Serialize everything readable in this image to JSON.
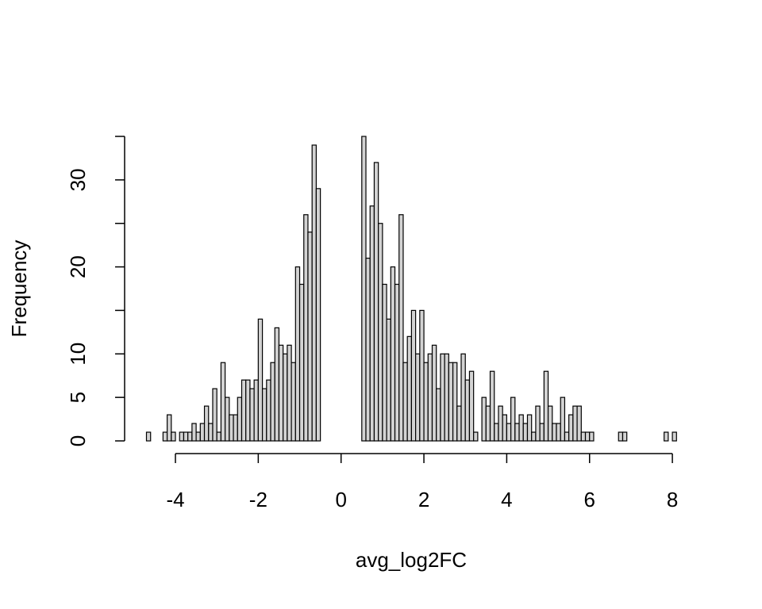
{
  "chart_data": {
    "type": "histogram",
    "xlabel": "avg_log2FC",
    "ylabel": "Frequency",
    "bins": [
      -4.7,
      -4.6,
      -4.5,
      -4.4,
      -4.3,
      -4.2,
      -4.1,
      -4,
      -3.9,
      -3.8,
      -3.7,
      -3.6,
      -3.5,
      -3.4,
      -3.3,
      -3.2,
      -3.1,
      -3,
      -2.9,
      -2.8,
      -2.7,
      -2.6,
      -2.5,
      -2.4,
      -2.3,
      -2.2,
      -2.1,
      -2,
      -1.9,
      -1.8,
      -1.7,
      -1.6,
      -1.5,
      -1.4,
      -1.3,
      -1.2,
      -1.1,
      -1,
      -0.9,
      -0.8,
      -0.7,
      -0.6,
      -0.5,
      -0.4,
      -0.3,
      -0.2,
      -0.1,
      0,
      0.1,
      0.2,
      0.3,
      0.4,
      0.5,
      0.6,
      0.7,
      0.8,
      0.9,
      1,
      1.1,
      1.2,
      1.3,
      1.4,
      1.5,
      1.6,
      1.7,
      1.8,
      1.9,
      2,
      2.1,
      2.2,
      2.3,
      2.4,
      2.5,
      2.6,
      2.7,
      2.8,
      2.9,
      3,
      3.1,
      3.2,
      3.3,
      3.4,
      3.5,
      3.6,
      3.7,
      3.8,
      3.9,
      4,
      4.1,
      4.2,
      4.3,
      4.4,
      4.5,
      4.6,
      4.7,
      4.8,
      4.9,
      5,
      5.1,
      5.2,
      5.3,
      5.4,
      5.5,
      5.6,
      5.7,
      5.8,
      5.9,
      6,
      6.1,
      6.2,
      6.3,
      6.4,
      6.5,
      6.6,
      6.7,
      6.8,
      6.9,
      7,
      7.1,
      7.2,
      7.3,
      7.4,
      7.5,
      7.6,
      7.7,
      7.8,
      7.9,
      8,
      8.1
    ],
    "counts": [
      1,
      0,
      0,
      0,
      1,
      3,
      1,
      0,
      1,
      1,
      1,
      2,
      1,
      2,
      4,
      2,
      6,
      1,
      9,
      5,
      3,
      3,
      5,
      7,
      7,
      6,
      7,
      14,
      6,
      7,
      9,
      13,
      11,
      10,
      11,
      9,
      20,
      18,
      26,
      24,
      34,
      29,
      0,
      0,
      0,
      0,
      0,
      0,
      0,
      0,
      0,
      0,
      35,
      21,
      27,
      32,
      25,
      18,
      14,
      20,
      18,
      26,
      9,
      12,
      15,
      10,
      15,
      9,
      10,
      11,
      6,
      10,
      10,
      9,
      9,
      4,
      10,
      7,
      8,
      1,
      0,
      5,
      4,
      8,
      2,
      4,
      3,
      2,
      5,
      2,
      3,
      2,
      3,
      1,
      4,
      2,
      8,
      4,
      2,
      2,
      5,
      1,
      3,
      4,
      4,
      1,
      1,
      1,
      0,
      0,
      0,
      0,
      0,
      0,
      1,
      1,
      0,
      0,
      0,
      0,
      0,
      0,
      0,
      0,
      0,
      1,
      0,
      1
    ],
    "color": "#d3d3d3",
    "xlim": [
      -4.7,
      8.1
    ],
    "xticks": [
      -4,
      -2,
      0,
      2,
      4,
      6,
      8
    ],
    "ylim": [
      0,
      35
    ],
    "yticks": [
      0,
      5,
      10,
      20,
      30
    ],
    "yminor_ticks": [
      15,
      25,
      35
    ]
  }
}
